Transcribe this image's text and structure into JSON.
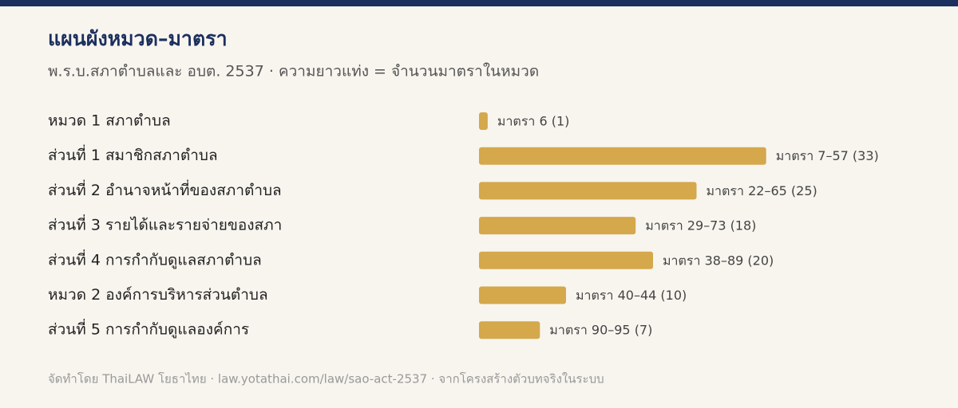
{
  "chart_data": {
    "type": "bar",
    "orientation": "horizontal",
    "title": "แผนผังหมวด–มาตรา",
    "subtitle": "พ.ร.บ.สภาตำบลและ อบต. 2537 · ความยาวแท่ง = จำนวนมาตราในหมวด",
    "categories": [
      "หมวด 1 สภาตำบล",
      "ส่วนที่ 1 สมาชิกสภาตำบล",
      "ส่วนที่ 2 อำนาจหน้าที่ของสภาตำบล",
      "ส่วนที่ 3 รายได้และรายจ่ายของสภา",
      "ส่วนที่ 4 การกำกับดูแลสภาตำบล",
      "หมวด 2 องค์การบริหารส่วนตำบล",
      "ส่วนที่ 5 การกำกับดูแลองค์การ"
    ],
    "values": [
      1,
      33,
      25,
      18,
      20,
      10,
      7
    ],
    "value_labels": [
      "มาตรา 6 (1)",
      "มาตรา 7–57 (33)",
      "มาตรา 22–65 (25)",
      "มาตรา 29–73 (18)",
      "มาตรา 38–89 (20)",
      "มาตรา 40–44 (10)",
      "มาตรา 90–95 (7)"
    ],
    "color": "#d4a84b",
    "source": "จัดทำโดย ThaiLAW โยธาไทย · law.yotathai.com/law/sao-act-2537 · จากโครงสร้างตัวบทจริงในระบบ"
  }
}
